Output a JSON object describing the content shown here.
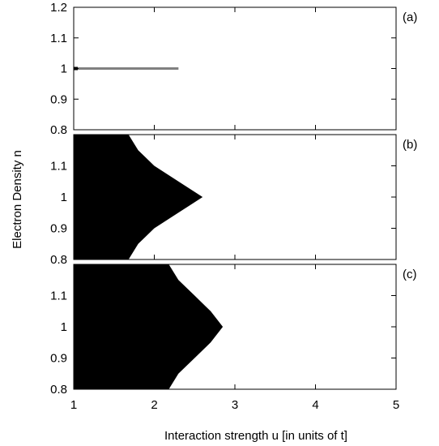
{
  "chart_data": {
    "type": "heatmap",
    "xlabel": "Interaction strength u [in units of t]",
    "ylabel": "Electron Density n",
    "xlim": [
      1,
      5
    ],
    "x_ticks": [
      "1",
      "2",
      "3",
      "4",
      "5"
    ],
    "y_tick_labels": [
      "0.8",
      "0.9",
      "1",
      "1.1",
      "1.2"
    ],
    "panels": [
      {
        "label": "(a)",
        "ylim": [
          0.8,
          1.2
        ],
        "y_ticks": [
          0.8,
          0.9,
          1.0,
          1.1,
          1.2
        ],
        "region": {
          "kind": "line",
          "n": 1.0,
          "u_min": 1.0,
          "u_max": 2.3,
          "color": "#808080"
        }
      },
      {
        "label": "(b)",
        "ylim": [
          0.8,
          1.2
        ],
        "y_ticks": [
          0.8,
          0.9,
          1.0,
          1.1
        ],
        "region": {
          "kind": "area",
          "color": "#000000",
          "boundary": [
            {
              "n": 0.8,
              "u": 1.68
            },
            {
              "n": 0.85,
              "u": 1.8
            },
            {
              "n": 0.9,
              "u": 2.0
            },
            {
              "n": 0.95,
              "u": 2.3
            },
            {
              "n": 1.0,
              "u": 2.6
            },
            {
              "n": 1.05,
              "u": 2.3
            },
            {
              "n": 1.1,
              "u": 2.0
            },
            {
              "n": 1.15,
              "u": 1.8
            },
            {
              "n": 1.2,
              "u": 1.68
            }
          ]
        }
      },
      {
        "label": "(c)",
        "ylim": [
          0.8,
          1.2
        ],
        "y_ticks": [
          0.8,
          0.9,
          1.0,
          1.1
        ],
        "region": {
          "kind": "area",
          "color": "#000000",
          "boundary": [
            {
              "n": 0.8,
              "u": 2.18
            },
            {
              "n": 0.85,
              "u": 2.3
            },
            {
              "n": 0.9,
              "u": 2.5
            },
            {
              "n": 0.95,
              "u": 2.7
            },
            {
              "n": 1.0,
              "u": 2.85
            },
            {
              "n": 1.05,
              "u": 2.7
            },
            {
              "n": 1.1,
              "u": 2.5
            },
            {
              "n": 1.15,
              "u": 2.3
            },
            {
              "n": 1.2,
              "u": 2.18
            }
          ]
        }
      }
    ]
  }
}
